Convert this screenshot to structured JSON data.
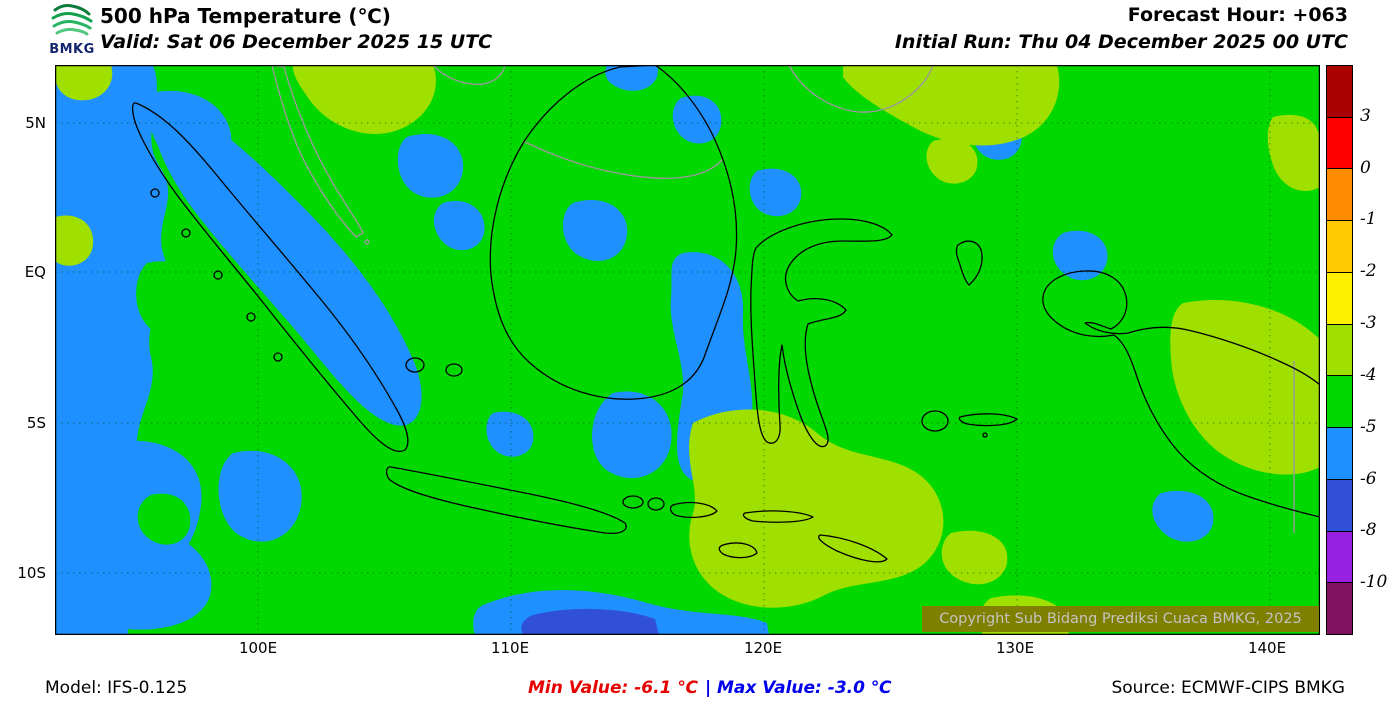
{
  "header": {
    "logo_label": "BMKG",
    "title": "500 hPa Temperature (℃)",
    "valid": "Valid: Sat 06 December 2025 15 UTC",
    "forecast_hour": "Forecast Hour: +063",
    "initial_run": "Initial Run: Thu 04 December 2025 00 UTC"
  },
  "map": {
    "lat_labels": [
      "5N",
      "EQ",
      "5S",
      "10S"
    ],
    "lon_labels": [
      "100E",
      "110E",
      "120E",
      "130E",
      "140E"
    ],
    "copyright": "Copyright Sub Bidang Prediksi Cuaca BMKG, 2025",
    "fill_colors": {
      "green": "#00d800",
      "blue": "#1e90ff",
      "yellow_green": "#a0e000",
      "deep_blue": "#3050d8"
    }
  },
  "colorbar": {
    "labels": [
      "3",
      "0",
      "-1",
      "-2",
      "-3",
      "-4",
      "-5",
      "-6",
      "-8",
      "-10"
    ],
    "colors": [
      "#aa0000",
      "#ff0000",
      "#ff8c00",
      "#ffc800",
      "#fff000",
      "#a0e000",
      "#00d800",
      "#1e90ff",
      "#3050d8",
      "#9820e0",
      "#801060"
    ]
  },
  "footer": {
    "model": "Model: IFS-0.125",
    "min_value": "Min Value: -6.1 ℃",
    "separator": "|",
    "max_value": "Max Value: -3.0 ℃",
    "source": "Source: ECMWF-CIPS BMKG"
  },
  "chart_data": {
    "type": "heatmap",
    "title": "500 hPa Temperature (℃)",
    "valid_time": "Sat 06 December 2025 15 UTC",
    "initial_run": "Thu 04 December 2025 00 UTC",
    "forecast_hour": "+063",
    "model": "IFS-0.125",
    "source": "ECMWF-CIPS BMKG",
    "lat_ticks": [
      "5N",
      "EQ",
      "5S",
      "10S"
    ],
    "lon_ticks": [
      "100E",
      "110E",
      "120E",
      "130E",
      "140E"
    ],
    "scale_boundaries_c": [
      3,
      0,
      -1,
      -2,
      -3,
      -4,
      -5,
      -6,
      -8,
      -10
    ],
    "scale_colors": [
      "#aa0000",
      "#ff0000",
      "#ff8c00",
      "#ffc800",
      "#fff000",
      "#a0e000",
      "#00d800",
      "#1e90ff",
      "#3050d8",
      "#9820e0",
      "#801060"
    ],
    "min_value_c": -6.1,
    "max_value_c": -3.0,
    "field_summary": "Mostly -5 to -4 ℃ (green) across the Indonesian region; pockets of -6 to -5 ℃ (blue) west of Sumatra, over the Makassar Strait and south-central seas; patches of -4 to -3 ℃ (yellow-green) over the Malay Peninsula, Philippine Sea, southern Sulawesi-Banda area and eastern Papua; a small area below -6 ℃ near the south-central bottom edge."
  }
}
